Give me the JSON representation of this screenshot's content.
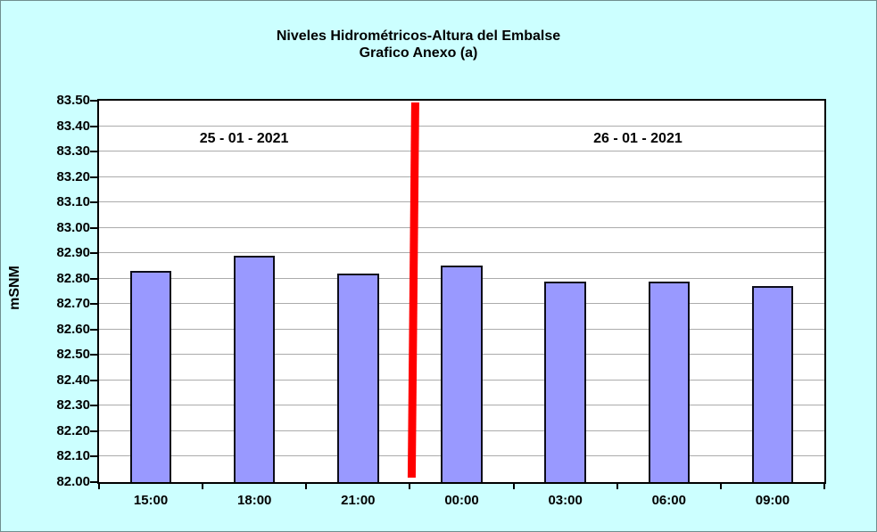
{
  "window": {
    "title_line1": "Niveles Hidrométricos-Altura del Embalse",
    "title_line2": "Grafico Anexo (a)"
  },
  "annotations": {
    "left_date": "25 - 01 - 2021",
    "right_date": "26 - 01 - 2021"
  },
  "y_axis": {
    "label": "mSNM",
    "tick_labels": [
      "82.00",
      "82.10",
      "82.20",
      "82.30",
      "82.40",
      "82.50",
      "82.60",
      "82.70",
      "82.80",
      "82.90",
      "83.00",
      "83.10",
      "83.20",
      "83.30",
      "83.40",
      "83.50"
    ]
  },
  "chart_data": {
    "type": "bar",
    "title": "Niveles Hidrométricos-Altura del Embalse / Grafico Anexo (a)",
    "categories": [
      "15:00",
      "18:00",
      "21:00",
      "00:00",
      "03:00",
      "06:00",
      "09:00"
    ],
    "values": [
      82.83,
      82.89,
      82.82,
      82.85,
      82.79,
      82.79,
      82.77
    ],
    "xlabel": "",
    "ylabel": "mSNM",
    "ylim": [
      82.0,
      83.5
    ],
    "ytick_step": 0.1,
    "grid": true,
    "legend_position": "none",
    "annotations": [
      {
        "text": "25 - 01 - 2021",
        "applies_to_categories": [
          "15:00",
          "18:00",
          "21:00"
        ]
      },
      {
        "text": "26 - 01 - 2021",
        "applies_to_categories": [
          "00:00",
          "03:00",
          "06:00",
          "09:00"
        ]
      }
    ],
    "divider": {
      "type": "vertical-line",
      "color": "#FF0000",
      "between_categories": [
        "21:00",
        "00:00"
      ],
      "boundary_index": 3
    }
  },
  "colors": {
    "background": "#CCFFFF",
    "plot_background": "#FFFFFF",
    "bar_fill": "#9999FF",
    "bar_border": "#0D0D1A",
    "gridline": "#ABABAB",
    "plot_border": "#000000",
    "divider_line": "#FF0000",
    "text": "#000000"
  }
}
